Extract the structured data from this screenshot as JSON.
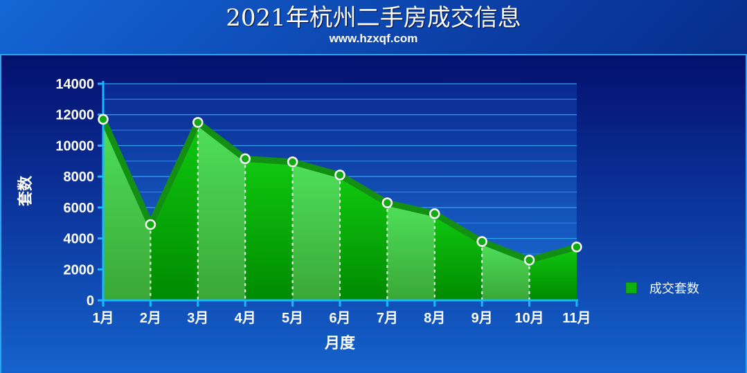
{
  "title": "2021年杭州二手房成交信息",
  "subtitle": "www.hzxqf.com",
  "chart_data": {
    "type": "area",
    "categories": [
      "1月",
      "2月",
      "3月",
      "4月",
      "5月",
      "6月",
      "7月",
      "8月",
      "9月",
      "10月",
      "11月"
    ],
    "series": [
      {
        "name": "成交套数",
        "values": [
          11700,
          4900,
          11500,
          9150,
          8950,
          8100,
          6300,
          5600,
          3800,
          2600,
          3450
        ]
      }
    ],
    "xlabel": "月度",
    "ylabel": "套数",
    "ylim": [
      0,
      14000
    ],
    "yticks": [
      0,
      2000,
      4000,
      6000,
      8000,
      10000,
      12000,
      14000
    ],
    "grid": true,
    "legend_position": "right",
    "colors": {
      "fill_light": "#48c24a",
      "fill_dark": "#0aa30a",
      "line": "#138f13",
      "marker_stroke": "#ffffff",
      "axis": "#19b8ff",
      "grid": "#2a7fe0"
    }
  }
}
